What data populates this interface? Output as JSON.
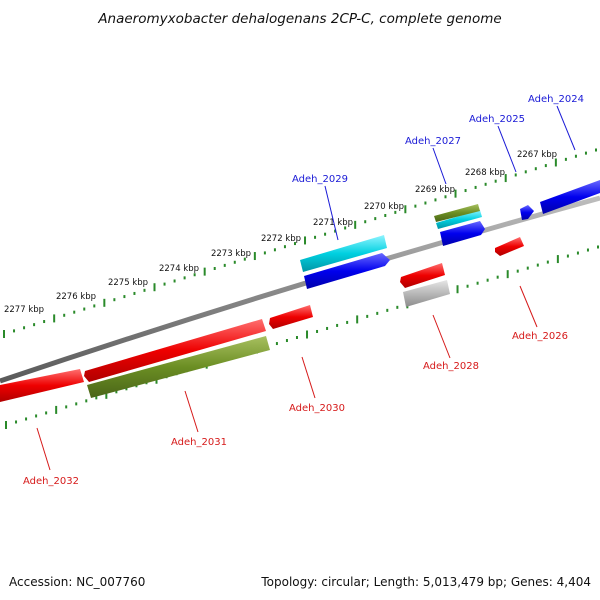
{
  "title": "Anaeromyxobacter dehalogenans 2CP-C, complete genome",
  "footer": {
    "accession": "Accession: NC_007760",
    "topology": "Topology: circular; Length: 5,013,479 bp; Genes: 4,404"
  },
  "colors": {
    "forward_gene": "#0000ee",
    "forward_rna": "#00ccdd",
    "reverse_gene": "#ee0000",
    "olive_gene": "#6b8e23",
    "grey_gene": "#b0b0b0",
    "backbone": "#888888",
    "tick": "#2a8a2a",
    "forward_label": "#1a1ad6",
    "reverse_label": "#d61a1a"
  },
  "scale_labels": [
    "2277 kbp",
    "2276 kbp",
    "2275 kbp",
    "2274 kbp",
    "2273 kbp",
    "2272 kbp",
    "2271 kbp",
    "2270 kbp",
    "2269 kbp",
    "2268 kbp",
    "2267 kbp"
  ],
  "genes_forward": [
    "Adeh_2024",
    "Adeh_2025",
    "Adeh_2027",
    "Adeh_2029"
  ],
  "genes_reverse": [
    "Adeh_2026",
    "Adeh_2028",
    "Adeh_2030",
    "Adeh_2031",
    "Adeh_2032"
  ]
}
